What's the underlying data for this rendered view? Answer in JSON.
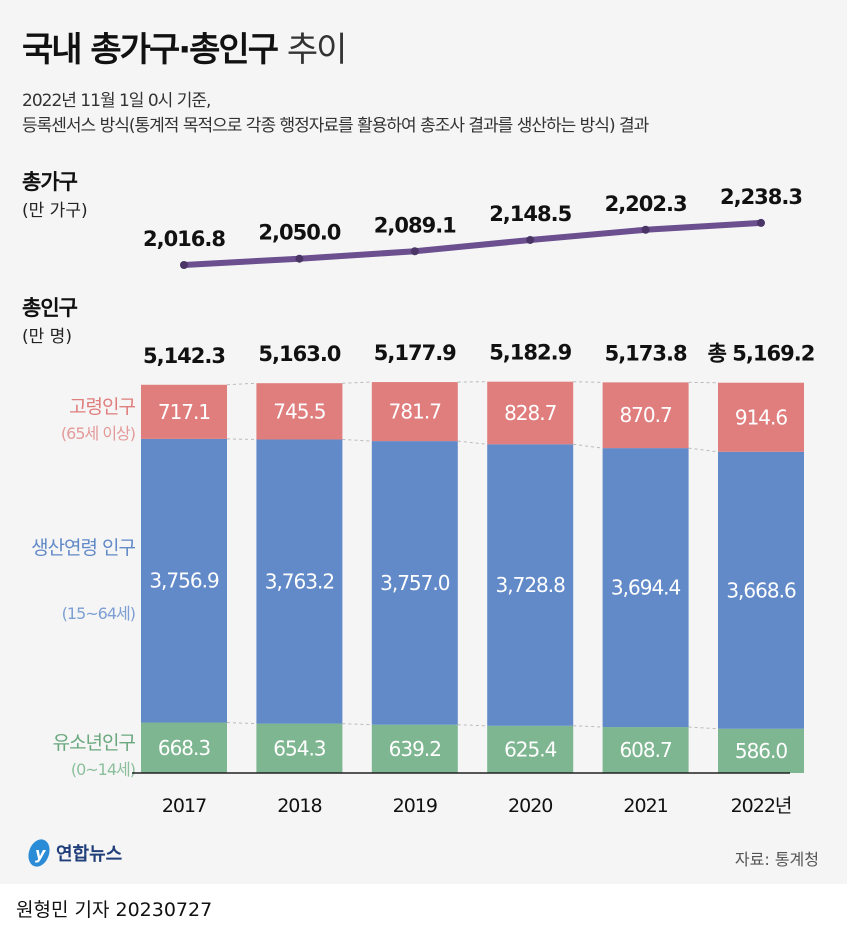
{
  "title": {
    "bold": "국내 총가구·총인구",
    "light": "추이"
  },
  "subtitle": [
    "2022년 11월 1일 0시 기준,",
    "등록센서스 방식(통계적 목적으로 각종 행정자료를 활용하여 총조사 결과를 생산하는 방식) 결과"
  ],
  "source": "자료: 통계청",
  "logo": "연합뉴스",
  "byline": "원형민 기자  20230727",
  "colors": {
    "elderly": "#e07e7e",
    "working": "#628ac8",
    "youth": "#7db690",
    "line": "#6b4f8f"
  },
  "chart_data": [
    {
      "type": "line",
      "title": "총가구",
      "unit": "(만 가구)",
      "x": [
        "2017",
        "2018",
        "2019",
        "2020",
        "2021",
        "2022"
      ],
      "labels": [
        "2,016.8",
        "2,050.0",
        "2,089.1",
        "2,148.5",
        "2,202.3",
        "2,238.3"
      ],
      "values": [
        2016.8,
        2050.0,
        2089.1,
        2148.5,
        2202.3,
        2238.3
      ]
    },
    {
      "type": "bar",
      "stacked": true,
      "title": "총인구",
      "unit": "(만 명)",
      "categories": [
        "2017",
        "2018",
        "2019",
        "2020",
        "2021",
        "2022년"
      ],
      "totals": [
        5142.3,
        5163.0,
        5177.9,
        5182.9,
        5173.8,
        5169.2
      ],
      "total_labels": [
        "5,142.3",
        "5,163.0",
        "5,177.9",
        "5,182.9",
        "5,173.8",
        "총 5,169.2"
      ],
      "series": [
        {
          "name": "유소년인구",
          "sub": "(0~14세)",
          "key": "youth",
          "values": [
            668.3,
            654.3,
            639.2,
            625.4,
            608.7,
            586.0
          ],
          "labels": [
            "668.3",
            "654.3",
            "639.2",
            "625.4",
            "608.7",
            "586.0"
          ]
        },
        {
          "name": "생산연령 인구",
          "sub": "(15~64세)",
          "key": "working",
          "values": [
            3756.9,
            3763.2,
            3757.0,
            3728.8,
            3694.4,
            3668.6
          ],
          "labels": [
            "3,756.9",
            "3,763.2",
            "3,757.0",
            "3,728.8",
            "3,694.4",
            "3,668.6"
          ]
        },
        {
          "name": "고령인구",
          "sub": "(65세 이상)",
          "key": "elderly",
          "values": [
            717.1,
            745.5,
            781.7,
            828.7,
            870.7,
            914.6
          ],
          "labels": [
            "717.1",
            "745.5",
            "781.7",
            "828.7",
            "870.7",
            "914.6"
          ]
        }
      ]
    }
  ]
}
